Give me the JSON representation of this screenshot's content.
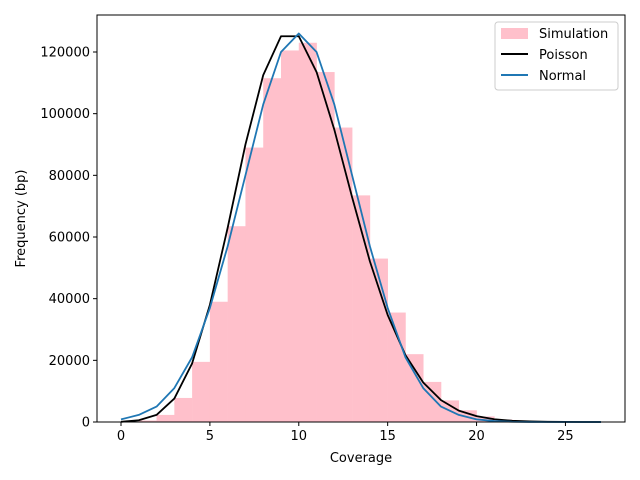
{
  "chart_data": {
    "type": "bar",
    "xlabel": "Coverage",
    "ylabel": "Frequency (bp)",
    "xlim": [
      -1.35,
      28.35
    ],
    "ylim": [
      0,
      132000
    ],
    "x_ticks": [
      0,
      5,
      10,
      15,
      20,
      25
    ],
    "y_ticks": [
      0,
      20000,
      40000,
      60000,
      80000,
      100000,
      120000
    ],
    "legend_position": "upper right",
    "histogram": {
      "name": "Simulation",
      "color": "#ffc0cb",
      "bin_edges": [
        0,
        1,
        2,
        3,
        4,
        5,
        6,
        7,
        8,
        9,
        10,
        11,
        12,
        13,
        14,
        15,
        16,
        17,
        18,
        19,
        20,
        21,
        22,
        23,
        24,
        25,
        26,
        27
      ],
      "values": [
        100,
        500,
        2300,
        7800,
        19500,
        39000,
        63500,
        89000,
        111500,
        120500,
        123000,
        113500,
        95500,
        73500,
        53000,
        35500,
        22000,
        13000,
        7000,
        3800,
        1800,
        800,
        350,
        150,
        80,
        40,
        20
      ]
    },
    "series": [
      {
        "name": "Poisson",
        "color": "#000000",
        "x": [
          0,
          1,
          2,
          3,
          4,
          5,
          6,
          7,
          8,
          9,
          10,
          11,
          12,
          13,
          14,
          15,
          16,
          17,
          18,
          19,
          20,
          21,
          22,
          23,
          24,
          25,
          26,
          27
        ],
        "values": [
          57,
          570,
          2300,
          7600,
          19000,
          38000,
          63000,
          90000,
          112500,
          125100,
          125100,
          113500,
          94800,
          72900,
          52100,
          34700,
          21700,
          12800,
          7100,
          3700,
          1900,
          900,
          400,
          200,
          80,
          30,
          10,
          5
        ]
      },
      {
        "name": "Normal",
        "color": "#1f77b4",
        "x": [
          0,
          1,
          2,
          3,
          4,
          5,
          6,
          7,
          8,
          9,
          10,
          11,
          12,
          13,
          14,
          15,
          16,
          17,
          18,
          19,
          20,
          21,
          22,
          23,
          24,
          25,
          26,
          27
        ],
        "values": [
          850,
          2300,
          5000,
          11000,
          21000,
          37000,
          57000,
          80000,
          103000,
          120000,
          126000,
          120000,
          103000,
          80000,
          57000,
          37000,
          21000,
          11000,
          5000,
          2300,
          850,
          300,
          90,
          25,
          6,
          1,
          0,
          0
        ]
      }
    ]
  }
}
